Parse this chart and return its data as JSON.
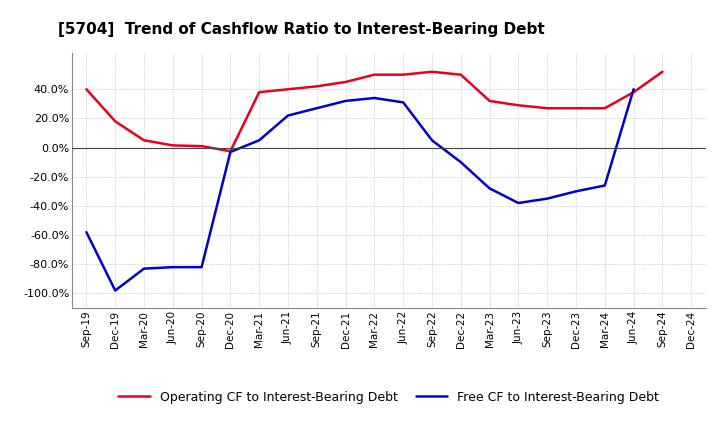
{
  "title": "[5704]  Trend of Cashflow Ratio to Interest-Bearing Debt",
  "x_labels": [
    "Sep-19",
    "Dec-19",
    "Mar-20",
    "Jun-20",
    "Sep-20",
    "Dec-20",
    "Mar-21",
    "Jun-21",
    "Sep-21",
    "Dec-21",
    "Mar-22",
    "Jun-22",
    "Sep-22",
    "Dec-22",
    "Mar-23",
    "Jun-23",
    "Sep-23",
    "Dec-23",
    "Mar-24",
    "Jun-24",
    "Sep-24",
    "Dec-24"
  ],
  "operating_cf": [
    40.0,
    18.0,
    5.0,
    1.5,
    1.0,
    -2.5,
    38.0,
    40.0,
    42.0,
    45.0,
    50.0,
    50.0,
    52.0,
    50.0,
    32.0,
    29.0,
    27.0,
    27.0,
    27.0,
    38.0,
    52.0,
    null
  ],
  "free_cf": [
    -58.0,
    -98.0,
    -83.0,
    -82.0,
    -82.0,
    -3.0,
    5.0,
    22.0,
    27.0,
    32.0,
    34.0,
    31.0,
    5.0,
    -10.0,
    -28.0,
    -38.0,
    -35.0,
    -30.0,
    -26.0,
    40.0,
    null,
    null
  ],
  "operating_color": "#e8001c",
  "free_color": "#0000cd",
  "ylim": [
    -110,
    65
  ],
  "yticks": [
    -100.0,
    -80.0,
    -60.0,
    -40.0,
    -20.0,
    0.0,
    20.0,
    40.0
  ],
  "background_color": "#ffffff",
  "grid_color": "#aaaaaa",
  "legend_op": "Operating CF to Interest-Bearing Debt",
  "legend_free": "Free CF to Interest-Bearing Debt"
}
